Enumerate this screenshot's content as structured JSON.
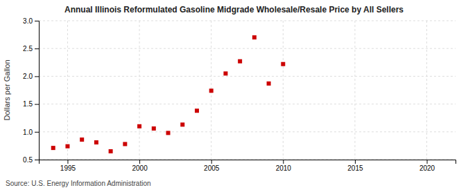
{
  "chart_data": {
    "type": "scatter",
    "title": "Annual Illinois Reformulated Gasoline Midgrade Wholesale/Resale Price by All Sellers",
    "y_label": "Dollars per Gallon",
    "annotations": [
      "Source: U.S. Energy Information Administration"
    ],
    "x": [
      1994,
      1995,
      1996,
      1997,
      1998,
      1999,
      2000,
      2001,
      2002,
      2003,
      2004,
      2005,
      2006,
      2007,
      2008,
      2009,
      2010
    ],
    "values": [
      0.71,
      0.74,
      0.86,
      0.81,
      0.65,
      0.78,
      1.1,
      1.06,
      0.98,
      1.13,
      1.38,
      1.74,
      2.05,
      2.27,
      2.7,
      1.87,
      2.22
    ],
    "color": "#cc0000",
    "marker": "square",
    "xlim": [
      1993,
      2022
    ],
    "ylim": [
      0.5,
      3.0
    ],
    "xticks": [
      1995,
      2000,
      2005,
      2010,
      2015,
      2020
    ],
    "yticks": [
      0.5,
      {
        "value": 1.0,
        "label": "1.0"
      },
      1.5,
      {
        "value": 2.0,
        "label": "2.0"
      },
      2.5,
      {
        "value": 3.0,
        "label": "3.0"
      }
    ],
    "grid": true
  }
}
